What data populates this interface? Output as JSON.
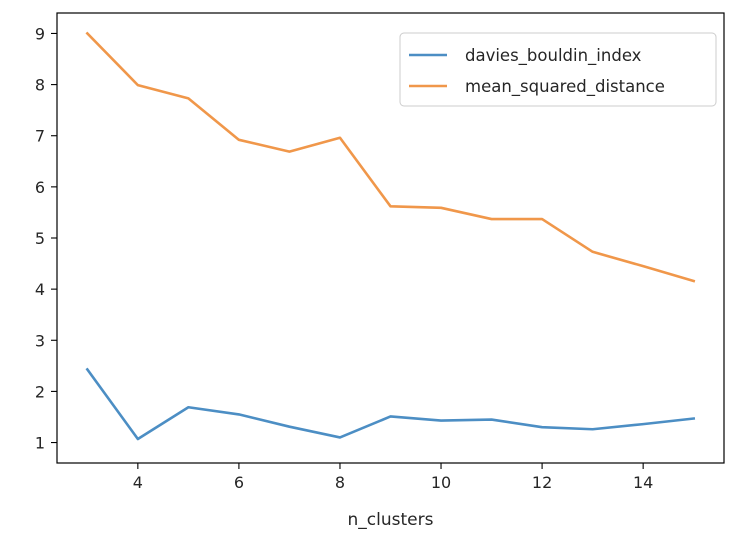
{
  "chart_data": {
    "type": "line",
    "title": "",
    "xlabel": "n_clusters",
    "ylabel": "",
    "x": [
      3,
      4,
      5,
      6,
      7,
      8,
      9,
      10,
      11,
      12,
      13,
      14,
      15
    ],
    "xlim": [
      2.4,
      15.6
    ],
    "ylim": [
      0.6,
      9.4
    ],
    "xticks": [
      4,
      6,
      8,
      10,
      12,
      14
    ],
    "yticks": [
      1,
      2,
      3,
      4,
      5,
      6,
      7,
      8,
      9
    ],
    "grid": false,
    "legend_position": "top-right",
    "series": [
      {
        "name": "davies_bouldin_index",
        "color": "#4c8ec4",
        "values": [
          2.43,
          1.07,
          1.69,
          1.55,
          1.31,
          1.1,
          1.51,
          1.43,
          1.45,
          1.3,
          1.26,
          1.36,
          1.47
        ]
      },
      {
        "name": "mean_squared_distance",
        "color": "#f0974a",
        "values": [
          9.0,
          7.99,
          7.73,
          6.92,
          6.69,
          6.96,
          5.62,
          5.59,
          5.37,
          5.37,
          4.73,
          4.45,
          4.16
        ]
      }
    ]
  }
}
